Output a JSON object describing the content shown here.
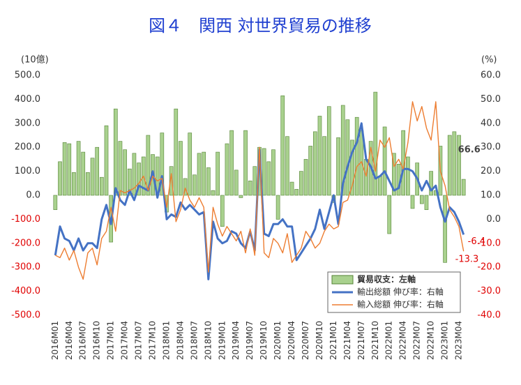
{
  "chart_data": {
    "type": "bar_line",
    "title": "図４　関西  対世界貿易の推移",
    "y_unit": "(10億)",
    "y2_unit": "(%)",
    "categories": [
      "2016M01",
      null,
      null,
      "2016M04",
      null,
      null,
      "2016M07",
      null,
      null,
      "2016M10",
      null,
      null,
      "2017M01",
      null,
      null,
      "2017M04",
      null,
      null,
      "2017M07",
      null,
      null,
      "2017M10",
      null,
      null,
      "2018M01",
      null,
      null,
      "2018M04",
      null,
      null,
      "2018M07",
      null,
      null,
      "2018M10",
      null,
      null,
      "2019M01",
      null,
      null,
      "2019M04",
      null,
      null,
      "2019M07",
      null,
      null,
      "2019M10",
      null,
      null,
      "2020M01",
      null,
      null,
      "2020M04",
      null,
      null,
      "2020M07",
      null,
      null,
      "2020M10",
      null,
      null,
      "2021M01",
      null,
      null,
      "2021M04",
      null,
      null,
      "2021M07",
      null,
      null,
      "2021M10",
      null,
      null,
      "2022M01",
      null,
      null,
      "2022M04",
      null,
      null,
      "2022M07",
      null,
      null,
      "2022M10",
      null,
      null,
      "2023M01",
      null,
      null,
      "2023M04",
      null
    ],
    "series": [
      {
        "name": "貿易収支：左軸",
        "type": "bar",
        "axis": "y",
        "color": "#a9d18e",
        "edge_color": "#548235",
        "values": [
          -60,
          140,
          220,
          215,
          95,
          225,
          180,
          95,
          155,
          200,
          75,
          290,
          -195,
          360,
          225,
          190,
          110,
          175,
          135,
          160,
          250,
          170,
          160,
          260,
          -70,
          120,
          360,
          225,
          70,
          260,
          85,
          175,
          180,
          115,
          20,
          180,
          -130,
          215,
          270,
          105,
          -10,
          270,
          60,
          120,
          200,
          195,
          140,
          190,
          -100,
          415,
          245,
          55,
          25,
          100,
          150,
          205,
          265,
          330,
          245,
          370,
          -30,
          240,
          375,
          315,
          230,
          325,
          270,
          150,
          225,
          430,
          80,
          285,
          -160,
          175,
          130,
          270,
          160,
          -55,
          135,
          -35,
          -60,
          100,
          20,
          205,
          -280,
          250,
          265,
          250,
          66.6
        ]
      },
      {
        "name": "輸出総額 伸び率：右軸",
        "type": "line",
        "axis": "y2",
        "color": "#4472c4",
        "values": [
          -15,
          -3,
          -8,
          -9,
          -13,
          -8,
          -13,
          -10,
          -10,
          -12,
          0,
          6,
          -2,
          13,
          8,
          6,
          12,
          8,
          14,
          13,
          12,
          20,
          9,
          18,
          0,
          2,
          1,
          7,
          4,
          6,
          4,
          2,
          3,
          -25,
          -1,
          -8,
          -10,
          -9,
          -5,
          -6,
          -10,
          -12,
          -5,
          -13,
          29,
          -6,
          -7,
          -2,
          -2,
          0,
          -3,
          -3,
          -17,
          -14,
          -11,
          -8,
          -4,
          4,
          -4,
          3,
          10,
          -2,
          15,
          22,
          28,
          32,
          40,
          25,
          22,
          17,
          18,
          20,
          16,
          12,
          13,
          21,
          21,
          20,
          17,
          12,
          16,
          12,
          14,
          5,
          -1,
          5,
          3,
          -1,
          -6.4
        ]
      },
      {
        "name": "輸入総額 伸び率：右軸",
        "type": "line",
        "axis": "y2",
        "color": "#ed7d31",
        "values": [
          -15,
          -16,
          -12,
          -17,
          -13,
          -20,
          -25,
          -14,
          -12,
          -19,
          -8,
          -5,
          5,
          -5,
          12,
          11,
          12,
          13,
          15,
          18,
          12,
          18,
          16,
          17,
          5,
          19,
          -1,
          4,
          13,
          8,
          5,
          9,
          5,
          -22,
          5,
          -2,
          -7,
          -3,
          -6,
          -9,
          -5,
          -14,
          -4,
          -15,
          30,
          -14,
          -16,
          -8,
          -10,
          -14,
          -6,
          -18,
          -15,
          -12,
          -5,
          -8,
          -12,
          -10,
          -5,
          -2,
          -4,
          -3,
          7,
          8,
          14,
          22,
          24,
          18,
          30,
          20,
          33,
          30,
          34,
          22,
          25,
          21,
          32,
          49,
          41,
          47,
          38,
          33,
          49,
          20,
          14,
          4,
          1,
          -3,
          -13.3
        ]
      }
    ],
    "ylim": [
      -500,
      500
    ],
    "yticks": [
      {
        "value": 500,
        "label": "500.0"
      },
      {
        "value": 400,
        "label": "400.0"
      },
      {
        "value": 300,
        "label": "300.0"
      },
      {
        "value": 200,
        "label": "200.0"
      },
      {
        "value": 100,
        "label": "100.0"
      },
      {
        "value": 0,
        "label": "0.0"
      },
      {
        "value": -100,
        "label": "-100.0"
      },
      {
        "value": -200,
        "label": "-200.0"
      },
      {
        "value": -300,
        "label": "-300.0"
      },
      {
        "value": -400,
        "label": "-400.0"
      },
      {
        "value": -500,
        "label": "-500.0"
      }
    ],
    "y2lim": [
      -40,
      60
    ],
    "y2ticks": [
      {
        "value": 60,
        "label": "60.0"
      },
      {
        "value": 50,
        "label": "50.0"
      },
      {
        "value": 40,
        "label": "40.0"
      },
      {
        "value": 30,
        "label": "30.0"
      },
      {
        "value": 20,
        "label": "20.0"
      },
      {
        "value": 10,
        "label": "10.0"
      },
      {
        "value": 0,
        "label": "0.0"
      },
      {
        "value": -10,
        "label": "-10.0"
      },
      {
        "value": -20,
        "label": "-20.0"
      },
      {
        "value": -30,
        "label": "-30.0"
      },
      {
        "value": -40,
        "label": "-40.0"
      }
    ],
    "negative_tick_color": "#e00000",
    "title_color": "#1f3fd0",
    "grid": false,
    "legend": "lower right"
  }
}
